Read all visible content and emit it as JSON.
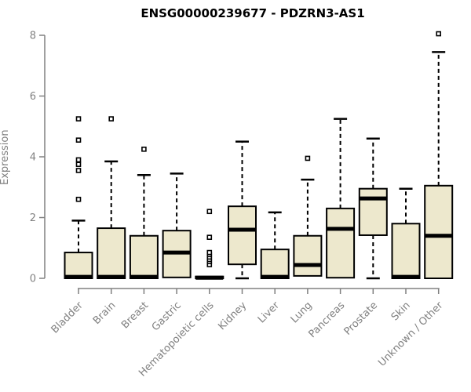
{
  "chart_data": {
    "type": "boxplot",
    "title": "ENSG00000239677 - PDZRN3-AS1",
    "ylabel": "Expression",
    "xlabel": "",
    "ylim": [
      0,
      8
    ],
    "yticks": [
      0,
      2,
      4,
      6,
      8
    ],
    "grid": false,
    "legend": false,
    "categories": [
      "Bladder",
      "Brain",
      "Breast",
      "Gastric",
      "Hematopoietic cells",
      "Kidney",
      "Liver",
      "Lung",
      "Pancreas",
      "Prostate",
      "Skin",
      "Unknown / Other"
    ],
    "boxes": [
      {
        "name": "Bladder",
        "min": 0,
        "q1": 0,
        "median": 0.05,
        "q3": 0.85,
        "whisker_high": 1.9,
        "outliers": [
          2.6,
          3.55,
          3.75,
          3.9,
          4.55,
          5.25
        ]
      },
      {
        "name": "Brain",
        "min": 0,
        "q1": 0,
        "median": 0.05,
        "q3": 1.65,
        "whisker_high": 3.85,
        "outliers": [
          5.25
        ]
      },
      {
        "name": "Breast",
        "min": 0,
        "q1": 0,
        "median": 0.05,
        "q3": 1.4,
        "whisker_high": 3.4,
        "outliers": [
          4.25
        ]
      },
      {
        "name": "Gastric",
        "min": 0,
        "q1": 0.03,
        "median": 0.85,
        "q3": 1.57,
        "whisker_high": 3.45,
        "outliers": []
      },
      {
        "name": "Hematopoietic cells",
        "min": 0,
        "q1": 0,
        "median": 0.02,
        "q3": 0.06,
        "whisker_high": 0.06,
        "outliers": [
          0.45,
          0.55,
          0.62,
          0.7,
          0.78,
          0.85,
          1.35,
          2.2
        ]
      },
      {
        "name": "Kidney",
        "min": 0,
        "q1": 0.46,
        "median": 1.6,
        "q3": 2.37,
        "whisker_high": 4.5,
        "outliers": []
      },
      {
        "name": "Liver",
        "min": 0,
        "q1": 0,
        "median": 0.05,
        "q3": 0.95,
        "whisker_high": 2.17,
        "outliers": []
      },
      {
        "name": "Lung",
        "min": 0,
        "q1": 0.08,
        "median": 0.44,
        "q3": 1.4,
        "whisker_high": 3.25,
        "outliers": [
          3.95
        ]
      },
      {
        "name": "Pancreas",
        "min": 0,
        "q1": 0.02,
        "median": 1.63,
        "q3": 2.3,
        "whisker_high": 5.25,
        "outliers": []
      },
      {
        "name": "Prostate",
        "min": 0,
        "q1": 1.42,
        "median": 2.63,
        "q3": 2.95,
        "whisker_high": 4.6,
        "outliers": []
      },
      {
        "name": "Skin",
        "min": 0,
        "q1": 0,
        "median": 0.05,
        "q3": 1.8,
        "whisker_high": 2.95,
        "outliers": []
      },
      {
        "name": "Unknown / Other",
        "min": 0,
        "q1": 0,
        "median": 1.4,
        "q3": 3.05,
        "whisker_high": 7.45,
        "outliers": [
          8.05
        ]
      }
    ],
    "colors": {
      "box_fill": "#EDE8CD",
      "box_border": "#000000",
      "median": "#000000",
      "whisker": "#000000",
      "axis": "#808080",
      "tick_label": "#808080",
      "title": "#000000"
    }
  }
}
